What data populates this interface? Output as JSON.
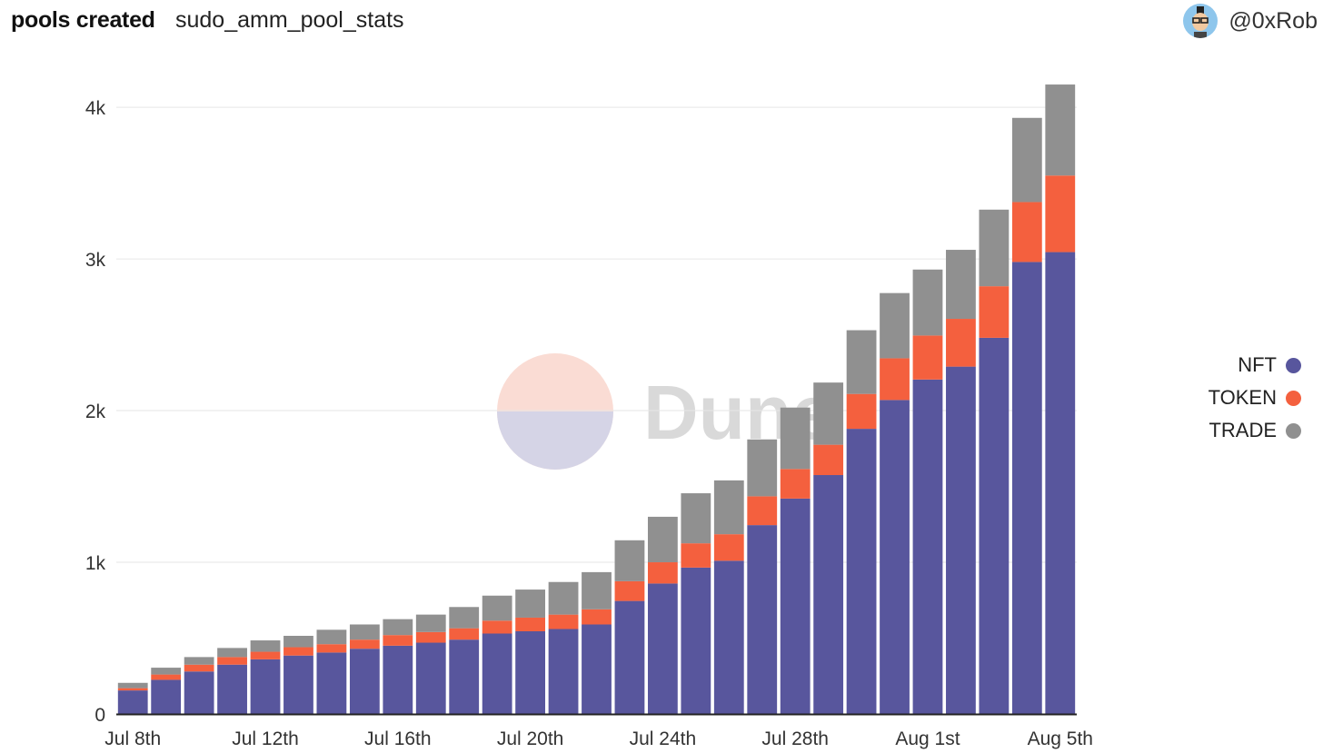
{
  "header": {
    "title": "pools created",
    "query_name": "sudo_amm_pool_stats",
    "author": "@0xRob",
    "avatar_icon": "avatar-icon"
  },
  "watermark": {
    "text": "Dune"
  },
  "colors": {
    "NFT": "#58569d",
    "TOKEN": "#f4603e",
    "TRADE": "#909090"
  },
  "chart_data": {
    "type": "bar",
    "stacked": true,
    "categories": [
      "2022-07-08",
      "2022-07-09",
      "2022-07-10",
      "2022-07-11",
      "2022-07-12",
      "2022-07-13",
      "2022-07-14",
      "2022-07-15",
      "2022-07-16",
      "2022-07-17",
      "2022-07-18",
      "2022-07-19",
      "2022-07-20",
      "2022-07-21",
      "2022-07-22",
      "2022-07-23",
      "2022-07-24",
      "2022-07-25",
      "2022-07-26",
      "2022-07-27",
      "2022-07-28",
      "2022-07-29",
      "2022-07-30",
      "2022-07-31",
      "2022-08-01",
      "2022-08-02",
      "2022-08-03",
      "2022-08-04",
      "2022-08-05"
    ],
    "series": [
      {
        "name": "NFT",
        "color": "#58569d",
        "values": [
          155,
          225,
          280,
          325,
          360,
          385,
          405,
          430,
          450,
          470,
          490,
          530,
          545,
          560,
          590,
          745,
          860,
          965,
          1010,
          1245,
          1420,
          1575,
          1880,
          2070,
          2205,
          2290,
          2480,
          2980,
          3045
        ]
      },
      {
        "name": "TOKEN",
        "color": "#f4603e",
        "values": [
          15,
          35,
          45,
          50,
          50,
          55,
          55,
          60,
          70,
          70,
          75,
          85,
          90,
          95,
          100,
          130,
          140,
          160,
          175,
          190,
          195,
          200,
          230,
          275,
          290,
          315,
          340,
          395,
          505
        ]
      },
      {
        "name": "TRADE",
        "color": "#909090",
        "values": [
          35,
          45,
          50,
          60,
          75,
          75,
          95,
          100,
          105,
          115,
          140,
          165,
          185,
          215,
          245,
          270,
          300,
          330,
          355,
          375,
          405,
          410,
          420,
          430,
          435,
          455,
          505,
          555,
          600
        ]
      }
    ],
    "ylim": [
      0,
      4300
    ],
    "yticks": [
      0,
      1000,
      2000,
      3000,
      4000
    ],
    "ytick_labels": [
      "0",
      "1k",
      "2k",
      "3k",
      "4k"
    ],
    "xtick_labels": [
      {
        "index": 0,
        "label": "Jul 8th"
      },
      {
        "index": 4,
        "label": "Jul 12th"
      },
      {
        "index": 8,
        "label": "Jul 16th"
      },
      {
        "index": 12,
        "label": "Jul 20th"
      },
      {
        "index": 16,
        "label": "Jul 24th"
      },
      {
        "index": 20,
        "label": "Jul 28th"
      },
      {
        "index": 24,
        "label": "Aug 1st"
      },
      {
        "index": 28,
        "label": "Aug 5th"
      }
    ],
    "xlabel": "",
    "ylabel": "",
    "grid": true,
    "legend_position": "right"
  },
  "legend": [
    {
      "name": "NFT",
      "color": "#58569d"
    },
    {
      "name": "TOKEN",
      "color": "#f4603e"
    },
    {
      "name": "TRADE",
      "color": "#909090"
    }
  ]
}
